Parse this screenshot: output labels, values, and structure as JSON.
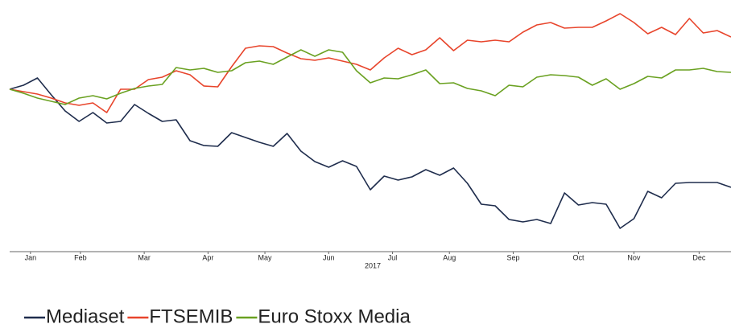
{
  "chart_data": {
    "type": "line",
    "x": [
      0,
      1,
      2,
      3,
      4,
      5,
      6,
      7,
      8,
      9,
      10,
      11,
      12,
      13,
      14,
      15,
      16,
      17,
      18,
      19,
      20,
      21,
      22,
      23,
      24,
      25,
      26,
      27,
      28,
      29,
      30,
      31,
      32,
      33,
      34,
      35,
      36,
      37,
      38,
      39,
      40,
      41,
      42,
      43,
      44,
      45,
      46,
      47,
      48,
      49,
      50,
      51,
      52
    ],
    "xlim": [
      0,
      52
    ],
    "xticks": [
      {
        "value": 1.5,
        "label": "Jan"
      },
      {
        "value": 5.1,
        "label": "Feb"
      },
      {
        "value": 9.7,
        "label": "Mar"
      },
      {
        "value": 14.3,
        "label": "Apr"
      },
      {
        "value": 18.4,
        "label": "May"
      },
      {
        "value": 23.0,
        "label": "Jun"
      },
      {
        "value": 27.6,
        "label": "Jul"
      },
      {
        "value": 31.7,
        "label": "Aug"
      },
      {
        "value": 36.3,
        "label": "Sep"
      },
      {
        "value": 41.0,
        "label": "Oct"
      },
      {
        "value": 45.0,
        "label": "Nov"
      },
      {
        "value": 49.7,
        "label": "Dec"
      }
    ],
    "x_label": "2017",
    "ylim": [
      0,
      150
    ],
    "legend": "bottom-left",
    "series": [
      {
        "name": "Mediaset",
        "color": "#1f2d4d",
        "values": [
          100,
          102.5,
          107,
          96.5,
          86.5,
          80,
          85.5,
          79,
          80,
          90.5,
          85,
          80,
          81,
          68,
          65,
          64.5,
          73,
          70,
          67,
          64.5,
          72.5,
          61.5,
          55,
          51.5,
          55.5,
          52,
          37.5,
          46,
          43.5,
          45.5,
          50,
          46.5,
          51,
          41.5,
          28.5,
          27.5,
          19,
          17.5,
          19,
          16.5,
          35.5,
          28,
          29.5,
          28.5,
          13.5,
          19.5,
          36.5,
          32.5,
          41.5,
          42,
          42,
          42,
          39
        ]
      },
      {
        "name": "FTSEMIB",
        "color": "#e8452c",
        "values": [
          100,
          98.5,
          97,
          94.5,
          91.5,
          90,
          91.5,
          85.5,
          100,
          100,
          106,
          107.5,
          111.5,
          109,
          102,
          101.5,
          114,
          125.5,
          127,
          126.5,
          122.5,
          119,
          118,
          119.5,
          117.5,
          115.5,
          112,
          119.5,
          125.5,
          121.5,
          124.5,
          132,
          124,
          130.5,
          129.5,
          130.5,
          129.5,
          135.5,
          140,
          141.5,
          138,
          138.5,
          138.5,
          142.5,
          147,
          141.5,
          134.5,
          138.5,
          134,
          144,
          135,
          136.5,
          132.5
        ]
      },
      {
        "name": "Euro Stoxx Media",
        "color": "#6aa121",
        "values": [
          100,
          97.5,
          94.5,
          92.5,
          90.5,
          94.5,
          96,
          94,
          97.5,
          100.5,
          102,
          103,
          113.5,
          112,
          113,
          110.5,
          111.5,
          116.5,
          117.5,
          115.5,
          120,
          124.5,
          120.5,
          124.5,
          123,
          111.5,
          104,
          107,
          106.5,
          109,
          112,
          103.5,
          104,
          100.5,
          99,
          96,
          102.5,
          101.5,
          107.5,
          109,
          108.5,
          107.5,
          102.5,
          106.5,
          100,
          103.5,
          108,
          107,
          112,
          112,
          113,
          111,
          110.5
        ]
      }
    ]
  }
}
